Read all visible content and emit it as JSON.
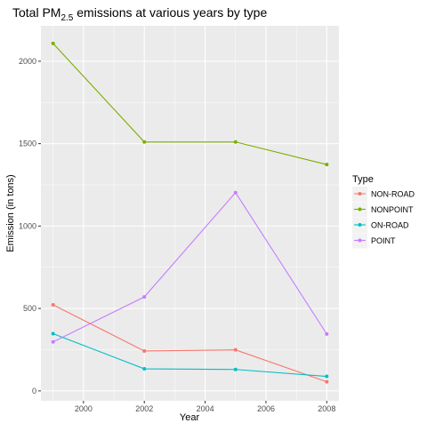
{
  "chart_data": {
    "type": "line",
    "title": "Total PM",
    "title_subscript": "2.5",
    "title_suffix": " emissions at various years by type",
    "xlabel": "Year",
    "ylabel": "Emission (in tons)",
    "xlim": [
      1998.6,
      2008.4
    ],
    "ylim": [
      -60,
      2215
    ],
    "x_ticks": [
      2000,
      2002,
      2004,
      2006,
      2008
    ],
    "x_tick_labels": [
      "2000",
      "2002",
      "2004",
      "2006",
      "2008"
    ],
    "y_ticks": [
      0,
      500,
      1000,
      1500,
      2000
    ],
    "y_tick_labels": [
      "0",
      "500",
      "1000",
      "1500",
      "2000"
    ],
    "grid": true,
    "legend_position": "right",
    "legend_title": "Type",
    "x": [
      1999,
      2002,
      2005,
      2008
    ],
    "series": [
      {
        "name": "NON-ROAD",
        "color": "#F8766D",
        "values": [
          522,
          242,
          249,
          55
        ]
      },
      {
        "name": "NONPOINT",
        "color": "#7CAE00",
        "values": [
          2108,
          1510,
          1510,
          1373
        ]
      },
      {
        "name": "ON-ROAD",
        "color": "#00BFC4",
        "values": [
          347,
          134,
          130,
          88
        ]
      },
      {
        "name": "POINT",
        "color": "#C77CFF",
        "values": [
          297,
          570,
          1203,
          345
        ]
      }
    ]
  }
}
